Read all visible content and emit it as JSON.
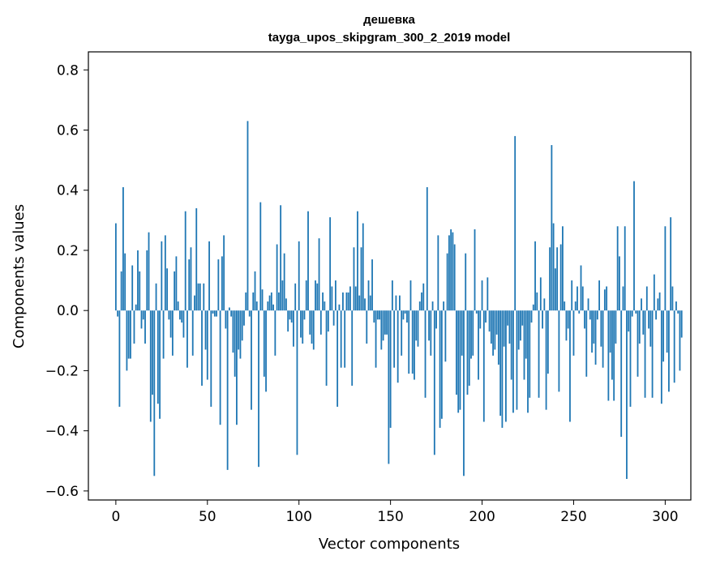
{
  "chart_data": {
    "type": "bar",
    "title": "дешевка",
    "subtitle": "tayga_upos_skipgram_300_2_2019 model",
    "xlabel": "Vector components",
    "ylabel": "Components values",
    "xlim": [
      -15,
      314
    ],
    "ylim": [
      -0.63,
      0.86
    ],
    "xticks": [
      0,
      50,
      100,
      150,
      200,
      250,
      300
    ],
    "yticks": [
      -0.6,
      -0.4,
      -0.2,
      0.0,
      0.2,
      0.4,
      0.6,
      0.8
    ],
    "xtick_labels": [
      "0",
      "50",
      "100",
      "150",
      "200",
      "250",
      "300"
    ],
    "ytick_labels": [
      "−0.6",
      "−0.4",
      "−0.2",
      "0.0",
      "0.2",
      "0.4",
      "0.6",
      "0.8"
    ],
    "grid": false,
    "bar_color": "#1f77b4",
    "series": [
      {
        "values": [
          0.29,
          -0.02,
          -0.32,
          0.13,
          0.41,
          0.19,
          -0.2,
          -0.16,
          -0.16,
          0.15,
          -0.11,
          0.02,
          0.2,
          0.13,
          -0.06,
          -0.03,
          -0.11,
          0.2,
          0.26,
          -0.37,
          -0.28,
          -0.55,
          0.09,
          -0.31,
          -0.36,
          0.23,
          -0.16,
          0.25,
          0.14,
          -0.03,
          -0.09,
          -0.15,
          0.13,
          0.18,
          0.03,
          -0.03,
          -0.04,
          -0.09,
          0.33,
          -0.19,
          0.17,
          0.21,
          -0.15,
          0.05,
          0.34,
          0.09,
          0.09,
          -0.25,
          0.09,
          -0.13,
          -0.23,
          0.23,
          -0.32,
          -0.01,
          -0.02,
          -0.02,
          0.17,
          -0.38,
          0.18,
          0.25,
          -0.06,
          -0.53,
          0.01,
          -0.02,
          -0.14,
          -0.22,
          -0.38,
          -0.13,
          -0.16,
          -0.1,
          -0.05,
          0.06,
          0.63,
          -0.02,
          -0.33,
          0.06,
          0.13,
          0.03,
          -0.52,
          0.36,
          0.07,
          -0.22,
          -0.27,
          0.03,
          0.05,
          0.06,
          0.02,
          -0.15,
          0.22,
          0.06,
          0.35,
          0.1,
          0.19,
          0.04,
          -0.07,
          -0.03,
          -0.04,
          -0.12,
          0.09,
          -0.48,
          0.23,
          -0.09,
          -0.11,
          -0.03,
          0.1,
          0.33,
          -0.08,
          -0.11,
          -0.13,
          0.1,
          0.09,
          0.24,
          -0.08,
          0.06,
          0.03,
          -0.25,
          -0.07,
          0.31,
          0.08,
          -0.05,
          0.1,
          -0.32,
          0.02,
          -0.19,
          0.06,
          -0.19,
          0.06,
          0.06,
          0.08,
          -0.25,
          0.21,
          0.08,
          0.33,
          0.05,
          0.21,
          0.29,
          0.04,
          -0.11,
          0.1,
          0.05,
          0.17,
          -0.04,
          -0.19,
          -0.03,
          -0.03,
          -0.13,
          -0.1,
          -0.08,
          -0.08,
          -0.51,
          -0.39,
          0.1,
          -0.19,
          0.05,
          -0.24,
          0.05,
          -0.15,
          -0.03,
          -0.01,
          -0.04,
          -0.21,
          0.1,
          -0.21,
          -0.23,
          -0.1,
          -0.12,
          0.03,
          0.06,
          0.09,
          -0.29,
          0.41,
          -0.1,
          -0.15,
          0.03,
          -0.48,
          -0.06,
          0.25,
          -0.39,
          -0.36,
          0.03,
          -0.17,
          0.19,
          0.25,
          0.27,
          0.26,
          0.22,
          -0.28,
          -0.34,
          -0.33,
          -0.15,
          -0.55,
          0.19,
          -0.28,
          -0.25,
          -0.16,
          -0.15,
          0.27,
          -0.01,
          -0.23,
          -0.06,
          0.1,
          -0.37,
          -0.04,
          0.11,
          -0.07,
          -0.11,
          -0.15,
          -0.13,
          -0.08,
          -0.18,
          -0.35,
          -0.39,
          -0.12,
          -0.37,
          -0.05,
          -0.11,
          -0.23,
          -0.34,
          0.58,
          -0.33,
          -0.13,
          -0.1,
          -0.05,
          -0.23,
          -0.16,
          -0.34,
          -0.29,
          -0.04,
          0.02,
          0.23,
          0.06,
          -0.29,
          0.11,
          -0.06,
          0.04,
          -0.33,
          -0.21,
          0.21,
          0.55,
          0.29,
          0.14,
          0.21,
          -0.27,
          0.22,
          0.28,
          0.03,
          -0.1,
          -0.06,
          -0.37,
          0.1,
          -0.15,
          0.03,
          0.08,
          -0.01,
          0.15,
          0.08,
          -0.06,
          -0.22,
          0.04,
          -0.03,
          -0.14,
          -0.11,
          -0.18,
          -0.03,
          0.1,
          -0.12,
          -0.19,
          0.07,
          0.08,
          -0.3,
          -0.14,
          -0.23,
          -0.3,
          -0.11,
          0.28,
          0.18,
          -0.42,
          0.08,
          0.28,
          -0.56,
          -0.07,
          -0.32,
          -0.02,
          0.43,
          -0.01,
          -0.22,
          -0.11,
          0.04,
          -0.08,
          -0.29,
          0.08,
          -0.06,
          -0.12,
          -0.29,
          0.12,
          -0.03,
          0.04,
          0.06,
          -0.31,
          -0.17,
          0.28,
          -0.14,
          -0.27,
          0.31,
          0.08,
          -0.24,
          0.03,
          -0.01,
          -0.2,
          -0.09
        ]
      }
    ]
  }
}
